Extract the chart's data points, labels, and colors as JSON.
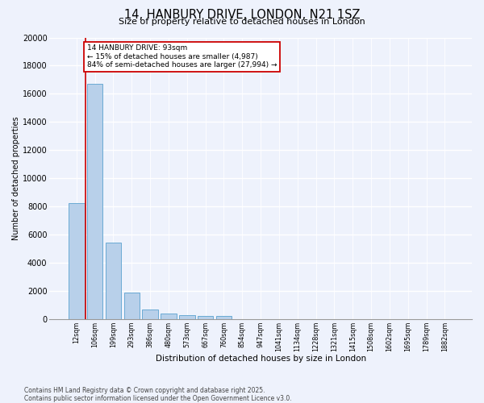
{
  "title_line1": "14, HANBURY DRIVE, LONDON, N21 1SZ",
  "title_line2": "Size of property relative to detached houses in London",
  "xlabel": "Distribution of detached houses by size in London",
  "ylabel": "Number of detached properties",
  "bar_color": "#b8d0ea",
  "bar_edge_color": "#6aaad4",
  "background_color": "#eef2fc",
  "grid_color": "#ffffff",
  "annotation_text": "14 HANBURY DRIVE: 93sqm\n← 15% of detached houses are smaller (4,987)\n84% of semi-detached houses are larger (27,994) →",
  "vline_color": "#cc0000",
  "categories": [
    "12sqm",
    "106sqm",
    "199sqm",
    "293sqm",
    "386sqm",
    "480sqm",
    "573sqm",
    "667sqm",
    "760sqm",
    "854sqm",
    "947sqm",
    "1041sqm",
    "1134sqm",
    "1228sqm",
    "1321sqm",
    "1415sqm",
    "1508sqm",
    "1602sqm",
    "1695sqm",
    "1789sqm",
    "1882sqm"
  ],
  "values": [
    8200,
    16700,
    5400,
    1850,
    680,
    370,
    270,
    220,
    180,
    0,
    0,
    0,
    0,
    0,
    0,
    0,
    0,
    0,
    0,
    0,
    0
  ],
  "ylim": [
    0,
    20000
  ],
  "yticks": [
    0,
    2000,
    4000,
    6000,
    8000,
    10000,
    12000,
    14000,
    16000,
    18000,
    20000
  ],
  "footer_line1": "Contains HM Land Registry data © Crown copyright and database right 2025.",
  "footer_line2": "Contains public sector information licensed under the Open Government Licence v3.0."
}
